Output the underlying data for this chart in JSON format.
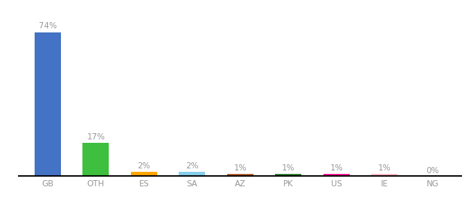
{
  "categories": [
    "GB",
    "OTH",
    "ES",
    "SA",
    "AZ",
    "PK",
    "US",
    "IE",
    "NG"
  ],
  "values": [
    74,
    17,
    2,
    2,
    1,
    1,
    1,
    1,
    0
  ],
  "labels": [
    "74%",
    "17%",
    "2%",
    "2%",
    "1%",
    "1%",
    "1%",
    "1%",
    "0%"
  ],
  "colors": [
    "#4472C4",
    "#3EBF3E",
    "#FFA500",
    "#87CEEB",
    "#B85C2A",
    "#2E7D32",
    "#FF1493",
    "#FFB6C1",
    "#999999"
  ],
  "background_color": "#ffffff",
  "label_color": "#999999",
  "label_fontsize": 8.5,
  "tick_fontsize": 8.5,
  "ylim": [
    0,
    82
  ],
  "bar_width": 0.55,
  "figsize": [
    6.8,
    3.0
  ],
  "dpi": 100
}
